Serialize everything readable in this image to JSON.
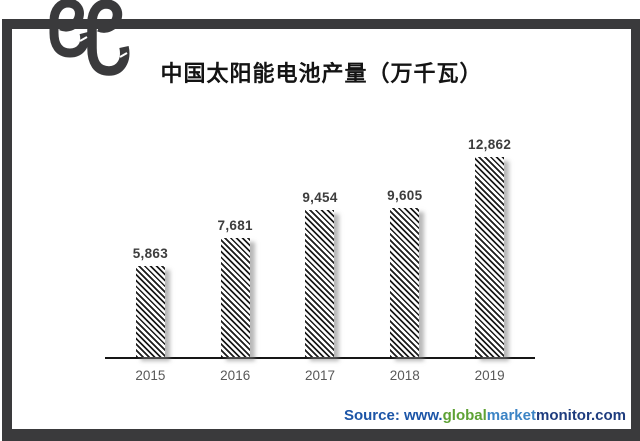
{
  "icons": {
    "logo": "double-e-hook-logo"
  },
  "colors": {
    "frame": "#3a3a3c",
    "bar_stripe": "#1c1c1c",
    "value_label": "#3d3d3d",
    "tick_label": "#595959",
    "source_prefix": "#1C55A7"
  },
  "chart_data": {
    "type": "bar",
    "title": "中国太阳能电池产量（万千瓦）",
    "categories": [
      "2015",
      "2016",
      "2017",
      "2018",
      "2019"
    ],
    "values": [
      5863,
      7681,
      9454,
      9605,
      12862
    ],
    "labels": [
      "5,863",
      "7,681",
      "9,454",
      "9,605",
      "12,862"
    ],
    "xlabel": "",
    "ylabel": "",
    "ylim": [
      0,
      12862
    ],
    "grid": false,
    "legend": false,
    "bar_fill": "diagonal-hatch",
    "value_labels_shown": true
  },
  "source": {
    "prefix": "Source: www.",
    "prefix_color": "#1C55A7",
    "segments": [
      {
        "text": "global",
        "color": "#5EA235"
      },
      {
        "text": "market",
        "color": "#3C84C5"
      },
      {
        "text": "monitor",
        "color": "#1E3C7E"
      },
      {
        "text": ".com",
        "color": "#1E3C7E"
      }
    ]
  }
}
